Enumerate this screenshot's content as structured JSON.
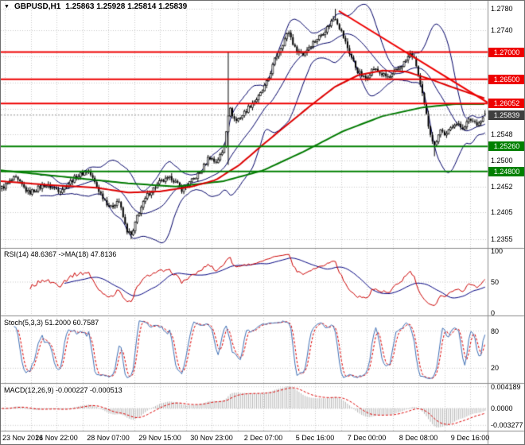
{
  "header": {
    "dropdown_icon": "▼",
    "symbol": "GBPUSD,H1",
    "ohlc": "1.25863 1.25928 1.25814 1.25839"
  },
  "colors": {
    "background": "#ffffff",
    "grid": "#c9c9c9",
    "separator": "#8c8c8c",
    "candle": "#000000",
    "candle_up_fill": "#ffffff",
    "candle_down_fill": "#000000",
    "bollinger": "#000066",
    "ma_red": "#dd0000",
    "ma_green": "#007a00",
    "hline_red": "#ee0000",
    "hline_green": "#008000",
    "current_line": "#909090",
    "rsi_line": "#cc0000",
    "rsi_ma_line": "#000080",
    "stoch_main": "#3f6fb5",
    "stoch_signal": "#dd0000",
    "macd_hist": "#b5b5b5",
    "macd_signal": "#dd0000",
    "text": "#000000"
  },
  "chart_data": {
    "type": "candlestick",
    "symbol": "GBPUSD",
    "timeframe": "H1",
    "ohlc_current": {
      "open": 1.25863,
      "high": 1.25928,
      "low": 1.25814,
      "close": 1.25839
    },
    "scale": {
      "price_top": 1.278,
      "price_bottom": 1.2355
    },
    "y_ticks": [
      {
        "label": "1.2780",
        "value": 1.278
      },
      {
        "label": "1.2740",
        "value": 1.274
      },
      {
        "label": "1.2548",
        "value": 1.2548
      },
      {
        "label": "1.2500",
        "value": 1.25
      },
      {
        "label": "1.2452",
        "value": 1.2452
      },
      {
        "label": "1.2405",
        "value": 1.2405
      },
      {
        "label": "1.2355",
        "value": 1.2355
      }
    ],
    "grid_prices": [
      1.278,
      1.274,
      1.2692,
      1.2644,
      1.2596,
      1.2548,
      1.25,
      1.2452,
      1.2405,
      1.2355
    ],
    "x_labels": [
      "23 Nov 2016",
      "24 Nov 22:00",
      "28 Nov 07:00",
      "29 Nov 15:00",
      "30 Nov 23:00",
      "2 Dec 07:00",
      "5 Dec 16:00",
      "7 Dec 00:00",
      "8 Dec 08:00",
      "9 Dec 16:00"
    ],
    "price_lines": [
      {
        "price": 1.27,
        "label": "1.27000",
        "color": "#ee0000"
      },
      {
        "price": 1.265,
        "label": "1.26500",
        "color": "#ee0000"
      },
      {
        "price": 1.26052,
        "label": "1.26052",
        "color": "#ee0000"
      },
      {
        "price": 1.2526,
        "label": "1.25260",
        "color": "#008000"
      },
      {
        "price": 1.248,
        "label": "1.24800",
        "color": "#008000"
      }
    ],
    "current_price": {
      "price": 1.25839,
      "label": "1.25839",
      "box_color": "#3f3f3f"
    },
    "trend_line": {
      "x1": 425,
      "p1": 1.2776,
      "x2": 612,
      "p2": 1.2607,
      "color": "#ee0000"
    },
    "price_path": [
      [
        0,
        1.2448
      ],
      [
        18,
        1.2468
      ],
      [
        35,
        1.244
      ],
      [
        55,
        1.2455
      ],
      [
        75,
        1.2445
      ],
      [
        95,
        1.247
      ],
      [
        110,
        1.2482
      ],
      [
        125,
        1.244
      ],
      [
        138,
        1.2412
      ],
      [
        148,
        1.2428
      ],
      [
        158,
        1.2372
      ],
      [
        165,
        1.236
      ],
      [
        172,
        1.24
      ],
      [
        185,
        1.2438
      ],
      [
        200,
        1.246
      ],
      [
        215,
        1.2468
      ],
      [
        228,
        1.2446
      ],
      [
        240,
        1.2462
      ],
      [
        252,
        1.248
      ],
      [
        262,
        1.2508
      ],
      [
        270,
        1.2496
      ],
      [
        280,
        1.2518
      ],
      [
        287,
        1.2598
      ],
      [
        295,
        1.2572
      ],
      [
        305,
        1.2586
      ],
      [
        315,
        1.2604
      ],
      [
        325,
        1.2618
      ],
      [
        335,
        1.2645
      ],
      [
        345,
        1.2688
      ],
      [
        355,
        1.2718
      ],
      [
        362,
        1.2738
      ],
      [
        370,
        1.2706
      ],
      [
        380,
        1.2696
      ],
      [
        390,
        1.2714
      ],
      [
        400,
        1.2728
      ],
      [
        410,
        1.2744
      ],
      [
        420,
        1.2766
      ],
      [
        428,
        1.2738
      ],
      [
        438,
        1.27
      ],
      [
        448,
        1.2666
      ],
      [
        458,
        1.265
      ],
      [
        468,
        1.267
      ],
      [
        478,
        1.266
      ],
      [
        488,
        1.2652
      ],
      [
        498,
        1.2666
      ],
      [
        508,
        1.2682
      ],
      [
        516,
        1.2698
      ],
      [
        522,
        1.2678
      ],
      [
        530,
        1.262
      ],
      [
        538,
        1.2562
      ],
      [
        545,
        1.2526
      ],
      [
        552,
        1.2558
      ],
      [
        560,
        1.2546
      ],
      [
        570,
        1.257
      ],
      [
        580,
        1.256
      ],
      [
        590,
        1.2576
      ],
      [
        600,
        1.2568
      ],
      [
        610,
        1.2584
      ]
    ],
    "wick_overrides": [
      {
        "x": 165,
        "low": 1.2355
      },
      {
        "x": 287,
        "high": 1.27,
        "low": 1.2492
      },
      {
        "x": 420,
        "high": 1.278
      },
      {
        "x": 545,
        "low": 1.2508
      }
    ],
    "ma_red": [
      [
        0,
        1.2462
      ],
      [
        60,
        1.2455
      ],
      [
        120,
        1.245
      ],
      [
        160,
        1.2441
      ],
      [
        200,
        1.2443
      ],
      [
        240,
        1.2452
      ],
      [
        270,
        1.2464
      ],
      [
        300,
        1.2492
      ],
      [
        330,
        1.253
      ],
      [
        360,
        1.2566
      ],
      [
        390,
        1.2602
      ],
      [
        420,
        1.2636
      ],
      [
        450,
        1.2658
      ],
      [
        480,
        1.2666
      ],
      [
        510,
        1.2664
      ],
      [
        540,
        1.265
      ],
      [
        570,
        1.2634
      ],
      [
        610,
        1.2614
      ]
    ],
    "ma_green": [
      [
        0,
        1.2482
      ],
      [
        80,
        1.247
      ],
      [
        160,
        1.2458
      ],
      [
        220,
        1.2452
      ],
      [
        280,
        1.2462
      ],
      [
        330,
        1.2482
      ],
      [
        380,
        1.2516
      ],
      [
        430,
        1.2554
      ],
      [
        480,
        1.2582
      ],
      [
        530,
        1.2598
      ],
      [
        570,
        1.2604
      ],
      [
        610,
        1.2604
      ]
    ],
    "panels": [
      {
        "name": "rsi",
        "label": "RSI(14) 48.6367 ->MA(18) 47.8136",
        "ticks": [
          {
            "label": "100",
            "value": 100
          },
          {
            "label": "50",
            "value": 50
          },
          {
            "label": "0",
            "value": 0
          }
        ]
      },
      {
        "name": "stoch",
        "label": "Stoch(5,3,3) 51.2000 60.7587",
        "ticks": [
          {
            "label": "80",
            "value": 80
          },
          {
            "label": "20",
            "value": 20
          }
        ]
      },
      {
        "name": "macd",
        "label": "MACD(12,26,9) -0.000227 -0.000513",
        "ticks": [
          {
            "label": "0.004189",
            "value": 0.004189
          },
          {
            "label": "0.0000",
            "value": 0
          },
          {
            "label": "-0.003277",
            "value": -0.003277
          }
        ]
      }
    ]
  }
}
